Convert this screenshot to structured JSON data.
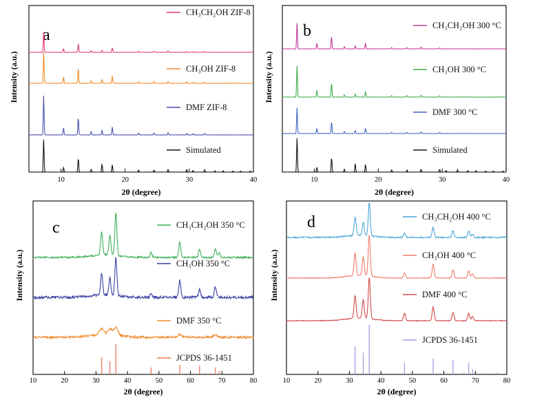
{
  "figure": {
    "xlabel": "2θ (degree)",
    "ylabel": "Intensity (a.u.)"
  },
  "chart_data": [
    {
      "panel": "a",
      "type": "line",
      "xlabel": "2θ (degree)",
      "ylabel": "Intensity (a.u.)",
      "xlim": [
        5,
        40
      ],
      "xticks": [
        10,
        20,
        30,
        40
      ],
      "series": [
        {
          "name": "CH₃CH₂OH ZIF-8",
          "color": "#e0337a",
          "style": "pattern",
          "noise": 0.004,
          "peaks": [
            [
              7.3,
              1.0
            ],
            [
              10.4,
              0.16
            ],
            [
              12.7,
              0.42
            ],
            [
              14.7,
              0.08
            ],
            [
              16.4,
              0.1
            ],
            [
              18.0,
              0.22
            ],
            [
              22.1,
              0.05
            ],
            [
              24.5,
              0.05
            ],
            [
              26.7,
              0.06
            ],
            [
              29.6,
              0.04
            ],
            [
              30.6,
              0.03
            ],
            [
              32.4,
              0.04
            ]
          ]
        },
        {
          "name": "CH₃OH ZIF-8",
          "color": "#f08a2c",
          "style": "pattern",
          "noise": 0.004,
          "peaks": [
            [
              7.3,
              1.0
            ],
            [
              10.4,
              0.2
            ],
            [
              12.7,
              0.48
            ],
            [
              14.7,
              0.09
            ],
            [
              16.4,
              0.12
            ],
            [
              18.0,
              0.23
            ],
            [
              22.1,
              0.05
            ],
            [
              24.5,
              0.06
            ],
            [
              26.7,
              0.07
            ],
            [
              29.6,
              0.05
            ],
            [
              30.6,
              0.03
            ],
            [
              32.4,
              0.04
            ]
          ]
        },
        {
          "name": "DMF ZIF-8",
          "color": "#4b4fb0",
          "style": "pattern",
          "noise": 0.004,
          "peaks": [
            [
              7.3,
              1.0
            ],
            [
              10.4,
              0.18
            ],
            [
              12.7,
              0.44
            ],
            [
              14.7,
              0.08
            ],
            [
              16.4,
              0.12
            ],
            [
              18.0,
              0.2
            ],
            [
              22.1,
              0.05
            ],
            [
              24.5,
              0.05
            ],
            [
              26.7,
              0.06
            ],
            [
              29.6,
              0.04
            ],
            [
              30.6,
              0.03
            ],
            [
              32.4,
              0.04
            ]
          ]
        },
        {
          "name": "Simulated",
          "color": "#111111",
          "style": "pattern",
          "noise": 0,
          "peaks": [
            [
              7.3,
              1.0
            ],
            [
              10.4,
              0.14
            ],
            [
              12.7,
              0.42
            ],
            [
              14.7,
              0.08
            ],
            [
              16.4,
              0.24
            ],
            [
              18.0,
              0.22
            ],
            [
              22.1,
              0.06
            ],
            [
              24.5,
              0.06
            ],
            [
              26.7,
              0.08
            ],
            [
              29.6,
              0.08
            ],
            [
              30.6,
              0.05
            ],
            [
              32.4,
              0.07
            ],
            [
              34.0,
              0.04
            ],
            [
              35.3,
              0.04
            ],
            [
              36.8,
              0.03
            ],
            [
              38.0,
              0.03
            ],
            [
              39.5,
              0.03
            ]
          ]
        }
      ]
    },
    {
      "panel": "b",
      "type": "line",
      "xlabel": "2θ (degree)",
      "ylabel": "Intensity (a.u.)",
      "xlim": [
        5,
        40
      ],
      "xticks": [
        10,
        20,
        30,
        40
      ],
      "series": [
        {
          "name": "CH₃CH₂OH 300 °C",
          "color": "#c03a98",
          "style": "pattern",
          "noise": 0.004,
          "peaks": [
            [
              7.3,
              1.0
            ],
            [
              10.4,
              0.22
            ],
            [
              12.7,
              0.48
            ],
            [
              14.7,
              0.08
            ],
            [
              16.4,
              0.12
            ],
            [
              18.0,
              0.22
            ],
            [
              22.1,
              0.05
            ],
            [
              24.5,
              0.05
            ],
            [
              26.7,
              0.07
            ],
            [
              29.6,
              0.04
            ]
          ]
        },
        {
          "name": "CH₃OH 300 °C",
          "color": "#3eae4a",
          "style": "pattern",
          "noise": 0.004,
          "peaks": [
            [
              7.3,
              1.0
            ],
            [
              10.4,
              0.22
            ],
            [
              12.7,
              0.45
            ],
            [
              14.7,
              0.07
            ],
            [
              16.4,
              0.1
            ],
            [
              18.0,
              0.18
            ],
            [
              22.1,
              0.05
            ],
            [
              24.5,
              0.05
            ],
            [
              26.7,
              0.06
            ],
            [
              29.6,
              0.04
            ]
          ]
        },
        {
          "name": "DMF 300 °C",
          "color": "#3f63c0",
          "style": "pattern",
          "noise": 0.004,
          "peaks": [
            [
              7.3,
              1.0
            ],
            [
              10.4,
              0.2
            ],
            [
              12.7,
              0.45
            ],
            [
              14.7,
              0.08
            ],
            [
              16.4,
              0.12
            ],
            [
              18.0,
              0.2
            ],
            [
              22.1,
              0.05
            ],
            [
              24.5,
              0.05
            ],
            [
              26.7,
              0.06
            ],
            [
              29.6,
              0.04
            ]
          ]
        },
        {
          "name": "Simulated",
          "color": "#111111",
          "style": "pattern",
          "noise": 0,
          "peaks": [
            [
              7.3,
              1.0
            ],
            [
              10.4,
              0.14
            ],
            [
              12.7,
              0.42
            ],
            [
              14.7,
              0.08
            ],
            [
              16.4,
              0.24
            ],
            [
              18.0,
              0.22
            ],
            [
              22.1,
              0.06
            ],
            [
              24.5,
              0.06
            ],
            [
              26.7,
              0.08
            ],
            [
              29.6,
              0.08
            ],
            [
              30.6,
              0.05
            ],
            [
              32.4,
              0.07
            ],
            [
              34.0,
              0.04
            ],
            [
              35.3,
              0.04
            ],
            [
              36.8,
              0.03
            ],
            [
              38.0,
              0.03
            ],
            [
              39.5,
              0.03
            ]
          ]
        }
      ]
    },
    {
      "panel": "c",
      "type": "line",
      "xlabel": "2θ (degree)",
      "ylabel": "Intensity (a.u.)",
      "xlim": [
        10,
        80
      ],
      "xticks": [
        10,
        20,
        30,
        40,
        50,
        60,
        70,
        80
      ],
      "series": [
        {
          "name": "CH₃CH₂OH 350 °C",
          "color": "#3fae5a",
          "style": "pattern",
          "noise": 0.02,
          "peaks": [
            [
              31.8,
              0.55
            ],
            [
              34.4,
              0.45
            ],
            [
              36.3,
              1.0
            ],
            [
              47.5,
              0.12
            ],
            [
              56.6,
              0.35
            ],
            [
              62.9,
              0.18
            ],
            [
              67.9,
              0.2
            ],
            [
              69.1,
              0.1
            ]
          ]
        },
        {
          "name": "CH₃OH  350 °C",
          "color": "#3a3fa3",
          "style": "pattern",
          "noise": 0.03,
          "peaks": [
            [
              31.8,
              0.5
            ],
            [
              34.4,
              0.4
            ],
            [
              36.3,
              0.9
            ],
            [
              47.5,
              0.1
            ],
            [
              56.6,
              0.4
            ],
            [
              62.9,
              0.18
            ],
            [
              67.9,
              0.25
            ]
          ]
        },
        {
          "name": "DMF 350 °C",
          "color": "#f08a2c",
          "style": "pattern",
          "noise": 0.06,
          "peaks": [
            [
              31.8,
              0.3
            ],
            [
              34.4,
              0.3
            ],
            [
              36.3,
              0.4
            ],
            [
              56.6,
              0.12
            ],
            [
              67.9,
              0.1
            ]
          ]
        },
        {
          "name": "JCPDS 36-1451",
          "color": "#e67a5a",
          "style": "sticks",
          "peaks": [
            [
              31.8,
              0.57
            ],
            [
              34.4,
              0.44
            ],
            [
              36.3,
              1.0
            ],
            [
              47.5,
              0.23
            ],
            [
              56.6,
              0.32
            ],
            [
              62.9,
              0.29
            ],
            [
              66.4,
              0.04
            ],
            [
              67.9,
              0.23
            ],
            [
              69.1,
              0.11
            ],
            [
              72.6,
              0.02
            ],
            [
              77.0,
              0.04
            ]
          ]
        }
      ]
    },
    {
      "panel": "d",
      "type": "line",
      "xlabel": "2θ (degree)",
      "ylabel": "Intensity (a.u.)",
      "xlim": [
        10,
        80
      ],
      "xticks": [
        10,
        20,
        30,
        40,
        50,
        60,
        70,
        80
      ],
      "series": [
        {
          "name": "CH₃CH₂OH 400 °C",
          "color": "#4aa6d6",
          "style": "pattern",
          "noise": 0.02,
          "peaks": [
            [
              31.8,
              0.55
            ],
            [
              34.4,
              0.4
            ],
            [
              36.3,
              1.0
            ],
            [
              47.5,
              0.14
            ],
            [
              56.6,
              0.3
            ],
            [
              62.9,
              0.2
            ],
            [
              67.9,
              0.18
            ],
            [
              69.1,
              0.1
            ]
          ]
        },
        {
          "name": "CH₃OH  400 °C",
          "color": "#ef7b67",
          "style": "pattern",
          "noise": 0.008,
          "peaks": [
            [
              31.8,
              0.55
            ],
            [
              34.4,
              0.45
            ],
            [
              36.3,
              1.0
            ],
            [
              47.5,
              0.12
            ],
            [
              56.6,
              0.33
            ],
            [
              62.9,
              0.2
            ],
            [
              67.9,
              0.18
            ],
            [
              69.1,
              0.1
            ]
          ]
        },
        {
          "name": "DMF  400 °C",
          "color": "#d04848",
          "style": "pattern",
          "noise": 0.008,
          "peaks": [
            [
              31.8,
              0.55
            ],
            [
              34.4,
              0.45
            ],
            [
              36.3,
              1.0
            ],
            [
              47.5,
              0.18
            ],
            [
              56.6,
              0.33
            ],
            [
              62.9,
              0.2
            ],
            [
              67.9,
              0.18
            ],
            [
              69.1,
              0.1
            ]
          ]
        },
        {
          "name": "JCPDS 36-1451",
          "color": "#9aa0e0",
          "style": "sticks",
          "peaks": [
            [
              31.8,
              0.57
            ],
            [
              34.4,
              0.44
            ],
            [
              36.3,
              1.0
            ],
            [
              47.5,
              0.23
            ],
            [
              56.6,
              0.32
            ],
            [
              62.9,
              0.29
            ],
            [
              66.4,
              0.04
            ],
            [
              67.9,
              0.23
            ],
            [
              69.1,
              0.11
            ],
            [
              72.6,
              0.02
            ],
            [
              77.0,
              0.04
            ]
          ]
        }
      ]
    }
  ]
}
